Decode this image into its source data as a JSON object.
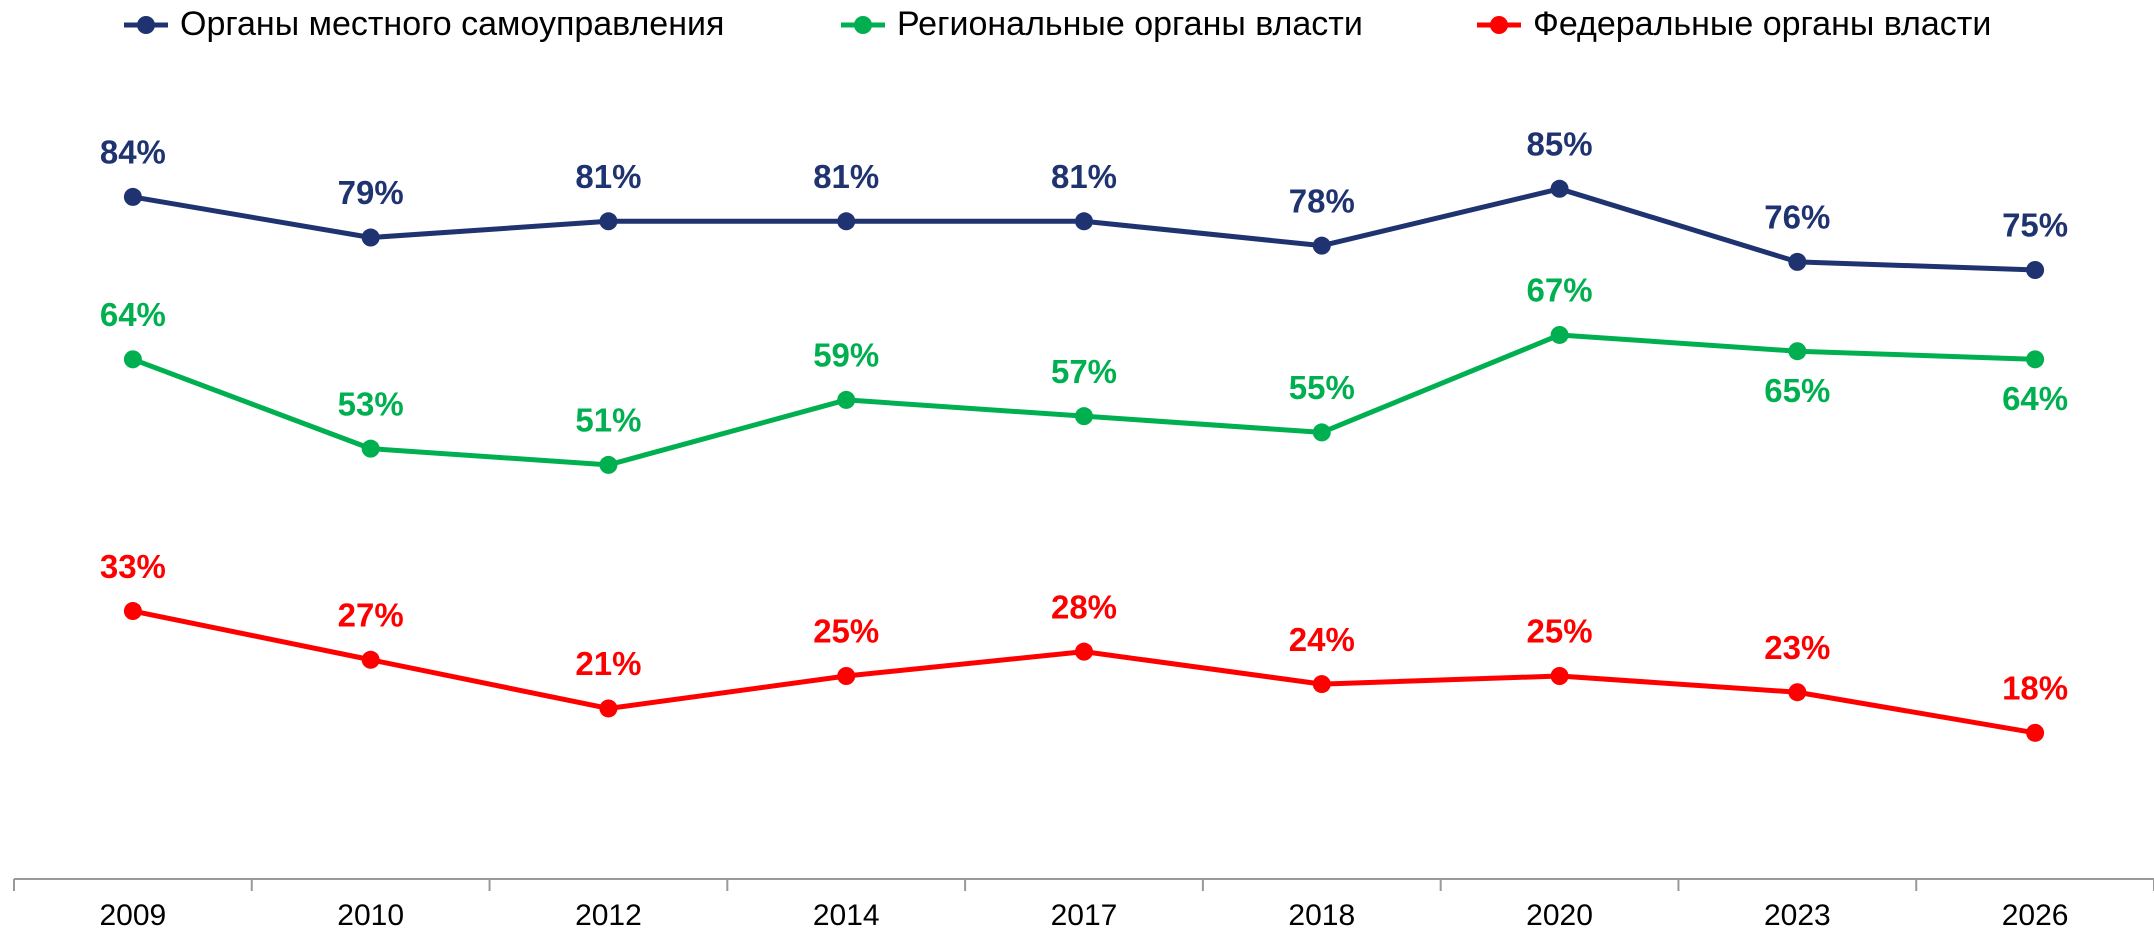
{
  "chart_data": {
    "type": "line",
    "categories": [
      "2009",
      "2010",
      "2012",
      "2014",
      "2017",
      "2018",
      "2020",
      "2023",
      "2026"
    ],
    "ylim": [
      0,
      100
    ],
    "legend": "top",
    "series": [
      {
        "name": "Органы местного самоуправления",
        "color": "#1f3370",
        "values": [
          84,
          79,
          81,
          81,
          81,
          78,
          85,
          76,
          75
        ],
        "value_labels": [
          "84%",
          "79%",
          "81%",
          "81%",
          "81%",
          "78%",
          "85%",
          "76%",
          "75%"
        ]
      },
      {
        "name": "Региональные органы власти",
        "color": "#00b050",
        "values": [
          64,
          53,
          51,
          59,
          57,
          55,
          67,
          65,
          64
        ],
        "value_labels": [
          "64%",
          "53%",
          "51%",
          "59%",
          "57%",
          "55%",
          "67%",
          "65%",
          "64%"
        ]
      },
      {
        "name": "Федеральные органы власти",
        "color": "#ff0000",
        "values": [
          33,
          27,
          21,
          25,
          28,
          24,
          25,
          23,
          18
        ],
        "value_labels": [
          "33%",
          "27%",
          "21%",
          "25%",
          "28%",
          "24%",
          "25%",
          "23%",
          "18%"
        ]
      }
    ]
  }
}
